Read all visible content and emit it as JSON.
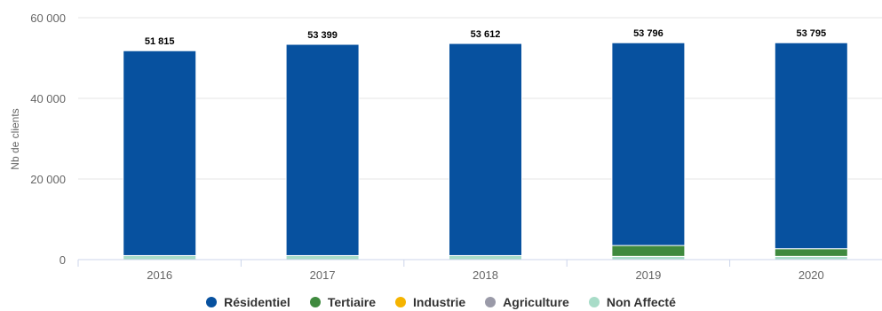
{
  "chart_data": {
    "type": "bar",
    "stacked": true,
    "categories": [
      "2016",
      "2017",
      "2018",
      "2019",
      "2020"
    ],
    "series": [
      {
        "name": "Résidentiel",
        "color": "#07519f",
        "values": [
          50815,
          52399,
          52612,
          50296,
          51095
        ]
      },
      {
        "name": "Tertiaire",
        "color": "#3f8a3e",
        "values": [
          0,
          0,
          0,
          2700,
          1900
        ]
      },
      {
        "name": "Industrie",
        "color": "#f5b400",
        "values": [
          0,
          0,
          0,
          0,
          0
        ]
      },
      {
        "name": "Agriculture",
        "color": "#9a9aa8",
        "values": [
          0,
          0,
          0,
          0,
          0
        ]
      },
      {
        "name": "Non Affecté",
        "color": "#a8dcc8",
        "values": [
          1000,
          1000,
          1000,
          800,
          800
        ]
      }
    ],
    "totals": [
      "51 815",
      "53 399",
      "53 612",
      "53 796",
      "53 795"
    ],
    "yticks": [
      {
        "value": 0,
        "label": "0"
      },
      {
        "value": 20000,
        "label": "20 000"
      },
      {
        "value": 40000,
        "label": "40 000"
      },
      {
        "value": 60000,
        "label": "60 000"
      }
    ],
    "ylim": [
      0,
      60000
    ],
    "xlabel": "",
    "ylabel": "Nb de clients",
    "grid": true,
    "legend_position": "bottom"
  }
}
